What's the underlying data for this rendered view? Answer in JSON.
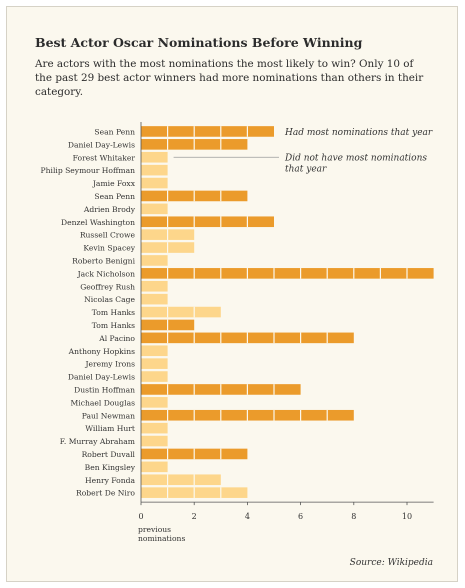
{
  "chart_data": {
    "type": "bar",
    "title": "Best Actor Oscar Nominations Before Winning",
    "subtitle": "Are actors with the most nominations the most likely to win? Only 10 of the past 29 best actor winners had more nominations than others in their category.",
    "xlabel": "previous nominations",
    "xlim": [
      0,
      11
    ],
    "xticks": [
      "0",
      "2",
      "4",
      "6",
      "8",
      "10"
    ],
    "categories": [
      "Sean Penn",
      "Daniel Day-Lewis",
      "Forest Whitaker",
      "Philip Seymour Hoffman",
      "Jamie Foxx",
      "Sean Penn",
      "Adrien Brody",
      "Denzel Washington",
      "Russell Crowe",
      "Kevin Spacey",
      "Roberto Benigni",
      "Jack Nicholson",
      "Geoffrey Rush",
      "Nicolas Cage",
      "Tom Hanks",
      "Tom Hanks",
      "Al Pacino",
      "Anthony Hopkins",
      "Jeremy Irons",
      "Daniel Day-Lewis",
      "Dustin Hoffman",
      "Michael Douglas",
      "Paul Newman",
      "William Hurt",
      "F. Murray Abraham",
      "Robert Duvall",
      "Ben Kingsley",
      "Henry Fonda",
      "Robert De Niro"
    ],
    "values": [
      5,
      4,
      1,
      1,
      1,
      4,
      1,
      5,
      2,
      2,
      1,
      11,
      1,
      1,
      3,
      2,
      8,
      1,
      1,
      1,
      6,
      1,
      8,
      1,
      1,
      4,
      1,
      3,
      4
    ],
    "most_nominations": [
      true,
      true,
      false,
      false,
      false,
      true,
      false,
      true,
      false,
      false,
      false,
      true,
      false,
      false,
      false,
      true,
      true,
      false,
      false,
      false,
      true,
      false,
      true,
      false,
      false,
      true,
      false,
      false,
      false
    ],
    "legend": {
      "most": "Had most nominations that year",
      "not_most": "Did not have most nominations that year"
    },
    "colors": {
      "most": "#eb9b2b",
      "not_most": "#fdd68b",
      "separator": "#fbf8ee",
      "axis": "#555555",
      "text": "#333333"
    },
    "grid": false
  },
  "source": "Source: Wikipedia"
}
